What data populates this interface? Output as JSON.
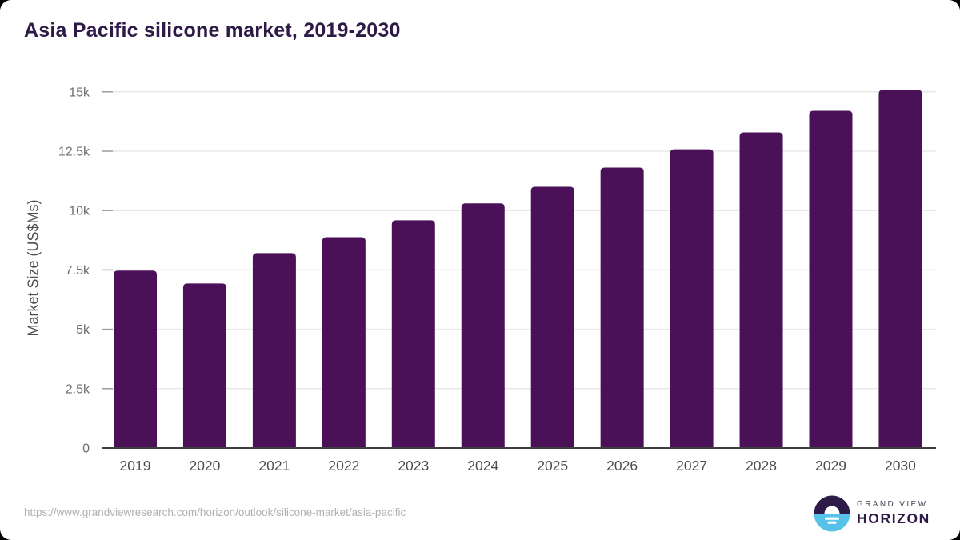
{
  "header": {
    "title": "Asia Pacific silicone market, 2019-2030"
  },
  "chart_data": {
    "type": "bar",
    "title": "Asia Pacific silicone market, 2019-2030",
    "categories": [
      "2019",
      "2020",
      "2021",
      "2022",
      "2023",
      "2024",
      "2025",
      "2026",
      "2027",
      "2028",
      "2029",
      "2030"
    ],
    "values": [
      7470,
      6930,
      8210,
      8880,
      9590,
      10300,
      11000,
      11810,
      12580,
      13290,
      14200,
      15080
    ],
    "xlabel": "",
    "ylabel": "Market Size (US$Ms)",
    "ylim": [
      0,
      15000
    ],
    "yticks": [
      {
        "label": "0",
        "value": 0
      },
      {
        "label": "2.5k",
        "value": 2500
      },
      {
        "label": "5k",
        "value": 5000
      },
      {
        "label": "7.5k",
        "value": 7500
      },
      {
        "label": "10k",
        "value": 10000
      },
      {
        "label": "12.5k",
        "value": 12500
      },
      {
        "label": "15k",
        "value": 15000
      }
    ],
    "grid": "horizontal-only",
    "legend": "none",
    "bar_color": "#4a1158"
  },
  "footer": {
    "source_url": "https://www.grandviewresearch.com/horizon/outlook/silicone-market/asia-pacific",
    "logo": {
      "top_text": "GRAND VIEW",
      "bottom_text": "HORIZON"
    }
  },
  "colors": {
    "bar": "#4a1158",
    "title_text": "#2e1a47",
    "axis_line": "#404040",
    "tick_mark": "#9a9a9a",
    "grid_line": "#e8e8e8",
    "y_tick_text": "#6e6e6e",
    "x_tick_text": "#4d4d4d",
    "url_text": "#b1b1b1",
    "logo_purple": "#2e1a47",
    "logo_blue": "#56c2ea"
  }
}
